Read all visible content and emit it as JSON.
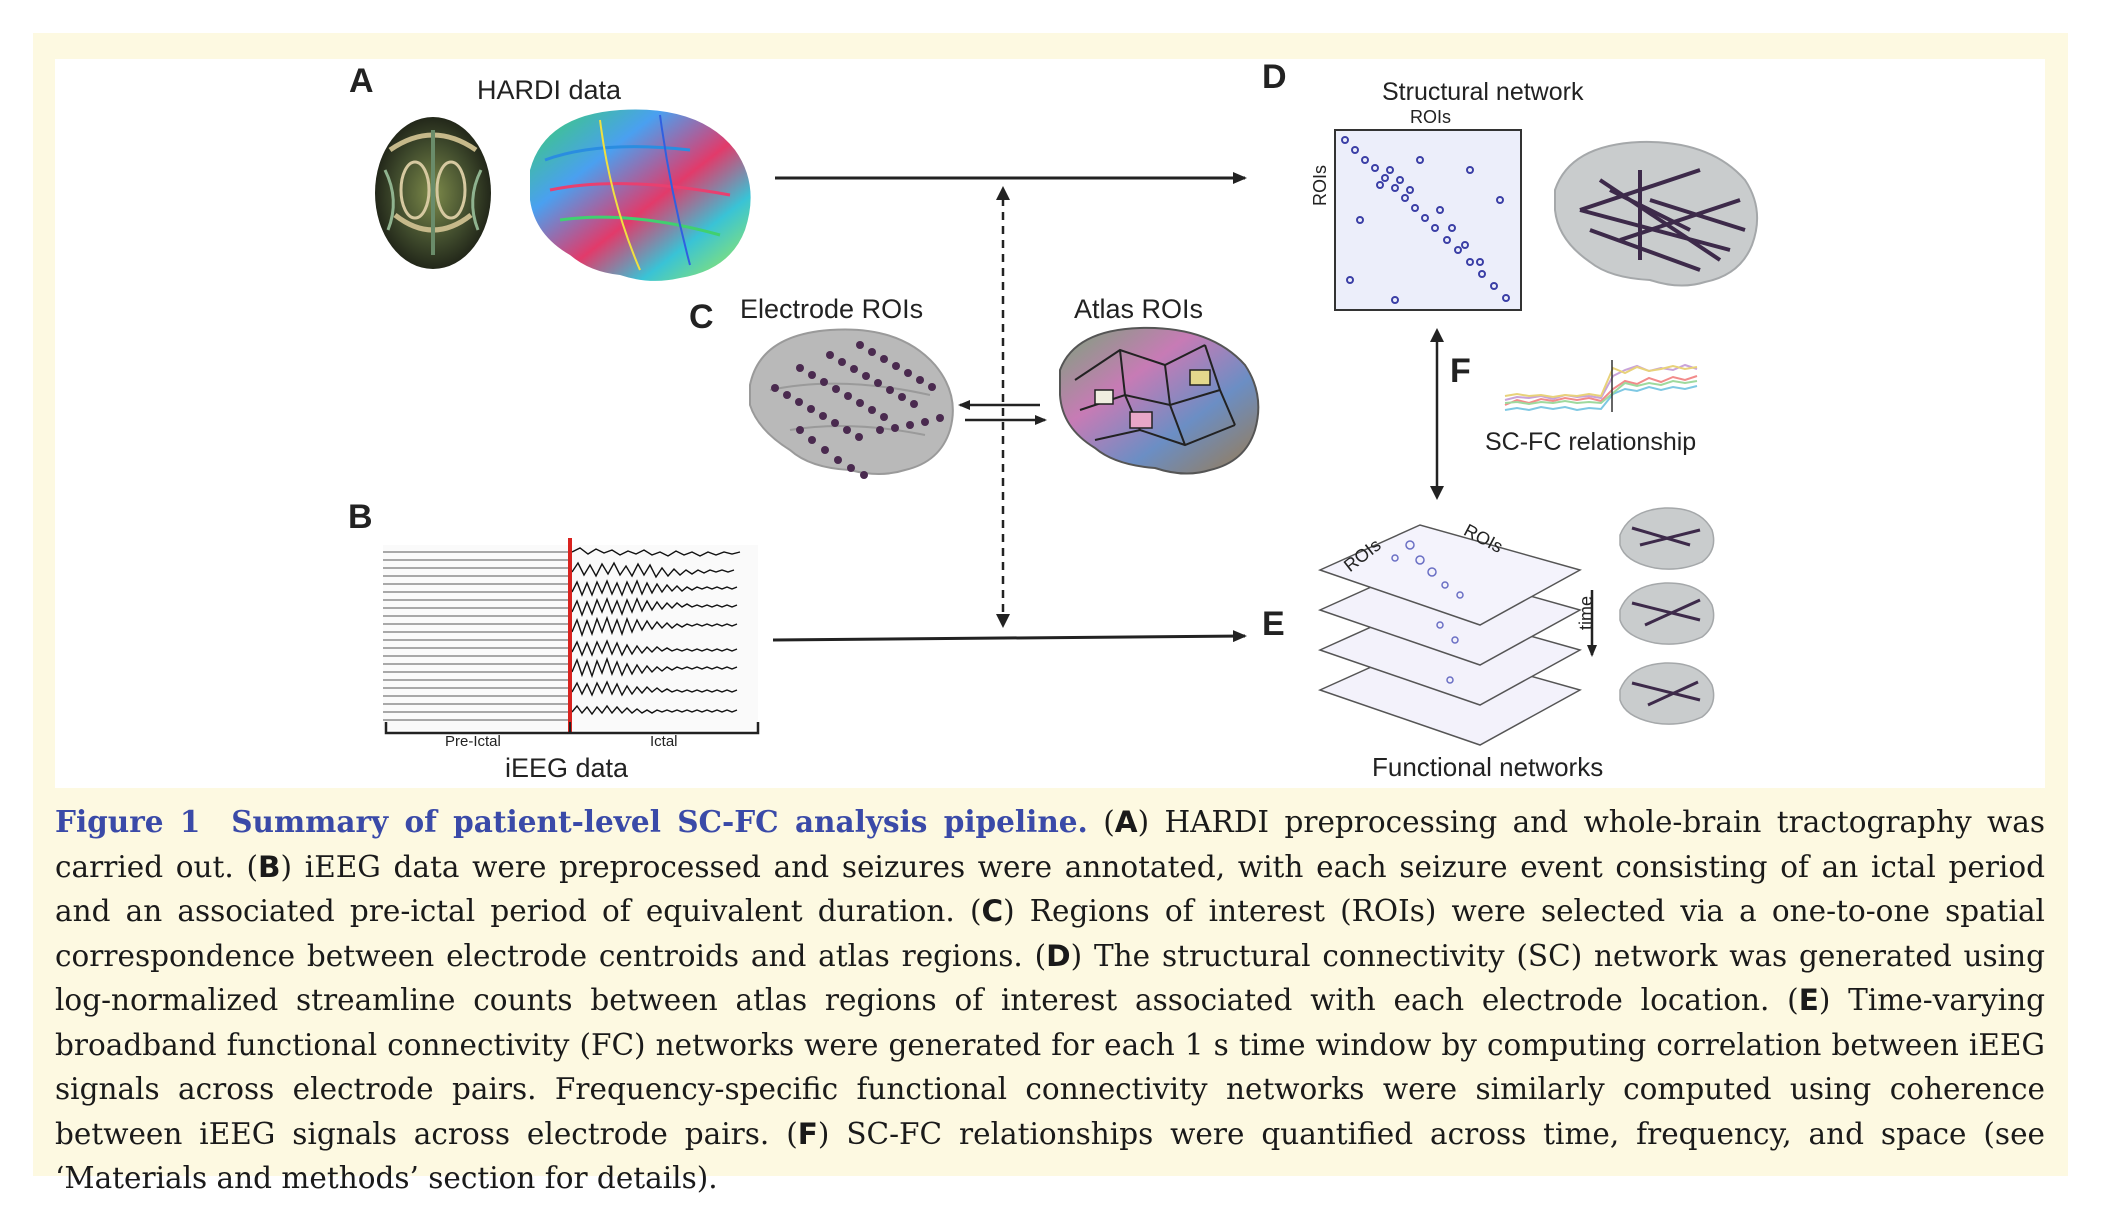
{
  "figure": {
    "panels": {
      "A": {
        "letter": "A",
        "title": "HARDI data"
      },
      "B": {
        "letter": "B",
        "title": "iEEG data",
        "pre_ictal": "Pre-Ictal",
        "ictal": "Ictal"
      },
      "C": {
        "letter": "C",
        "electrode": "Electrode ROIs",
        "atlas": "Atlas ROIs"
      },
      "D": {
        "letter": "D",
        "title": "Structural network",
        "x_label": "ROIs",
        "y_label": "ROIs"
      },
      "E": {
        "letter": "E",
        "title": "Functional networks",
        "roi_left": "ROIs",
        "roi_right": "ROIs",
        "time": "time"
      },
      "F": {
        "letter": "F",
        "title": "SC-FC relationship"
      }
    },
    "colors": {
      "ictal_marker": "#d9231f",
      "matrix_dots": "#3b3fa6",
      "caption_title": "#3a4aa8",
      "background": "#fdf9e1"
    }
  },
  "caption": {
    "figure_label": "Figure 1",
    "title": "Summary of patient-level SC-FC analysis pipeline.",
    "parts": [
      {
        "key": "A",
        "text": "HARDI preprocessing and whole-brain tractography was carried out."
      },
      {
        "key": "B",
        "text": "iEEG data were preprocessed and seizures were annotated, with each seizure event consisting of an ictal period and an associated pre-ictal period of equivalent duration."
      },
      {
        "key": "C",
        "text": "Regions of interest (ROIs) were selected via a one-to-one spatial correspondence between electrode centroids and atlas regions."
      },
      {
        "key": "D",
        "text": "The structural connectivity (SC) network was generated using log-normalized streamline counts between atlas regions of interest associated with each electrode location."
      },
      {
        "key": "E",
        "text": "Time-varying broadband functional connectivity (FC) networks were generated for each 1 s time window by computing correlation between iEEG signals across electrode pairs. Frequency-specific functional connectivity networks were similarly computed using coherence between iEEG signals across electrode pairs."
      },
      {
        "key": "F",
        "text": "SC-FC relationships were quantified across time, frequency, and space (see ‘Materials and methods’ section for details)."
      }
    ]
  }
}
